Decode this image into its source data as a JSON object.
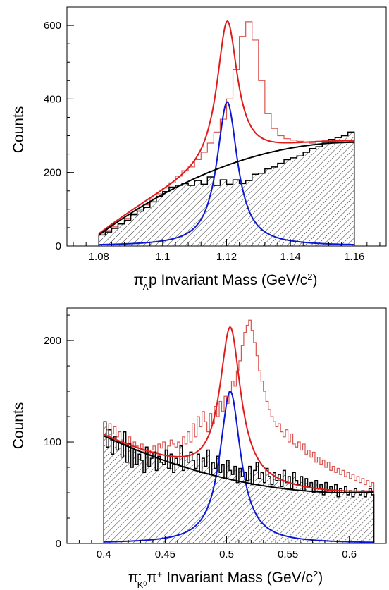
{
  "chart_data": [
    {
      "type": "histogram",
      "id": "lambda",
      "ylabel": "Counts",
      "xlabel": {
        "base": "π",
        "sup": "-",
        "sub": "Λ",
        "rest": "p Invariant Mass (GeV/c",
        "unit_sup": "2",
        "close": ")"
      },
      "xlim": [
        1.07,
        1.17
      ],
      "ylim": [
        0,
        650
      ],
      "xticks": [
        {
          "v": 1.08,
          "label": "1.08"
        },
        {
          "v": 1.1,
          "label": "1.1"
        },
        {
          "v": 1.12,
          "label": "1.12"
        },
        {
          "v": 1.14,
          "label": "1.14"
        },
        {
          "v": 1.16,
          "label": "1.16"
        }
      ],
      "yticks": [
        {
          "v": 0,
          "label": "0"
        },
        {
          "v": 200,
          "label": "200"
        },
        {
          "v": 400,
          "label": "400"
        },
        {
          "v": 600,
          "label": "600"
        }
      ],
      "bin_start": 1.08,
      "bin_width": 0.002,
      "series": [
        {
          "kind": "hist",
          "color": "#d9534f",
          "values": [
            35,
            42,
            52,
            62,
            75,
            88,
            100,
            112,
            128,
            142,
            158,
            172,
            190,
            205,
            215,
            235,
            255,
            280,
            310,
            345,
            400,
            480,
            570,
            610,
            560,
            450,
            360,
            320,
            300,
            292,
            288,
            285,
            282,
            280,
            285,
            288,
            290,
            295,
            300,
            310
          ]
        },
        {
          "kind": "hist-hatched",
          "color": "#000000",
          "values": [
            30,
            38,
            48,
            60,
            70,
            85,
            95,
            105,
            120,
            135,
            148,
            160,
            165,
            170,
            165,
            178,
            168,
            188,
            165,
            180,
            168,
            180,
            170,
            178,
            195,
            198,
            210,
            215,
            225,
            235,
            240,
            245,
            255,
            265,
            270,
            280,
            290,
            295,
            300,
            310
          ]
        },
        {
          "kind": "fit",
          "color": "#e01b1b",
          "model": "total",
          "peak": 1.1202,
          "gamma": 0.0078,
          "amp": 392
        },
        {
          "kind": "fit",
          "color": "#0b18d6",
          "model": "signal",
          "peak": 1.1202,
          "gamma": 0.0078,
          "amp": 392
        },
        {
          "kind": "fit",
          "color": "#000000",
          "model": "background",
          "poly": [
            30,
            282,
            1.08,
            1.16
          ]
        }
      ]
    },
    {
      "type": "histogram",
      "id": "kaon",
      "ylabel": "Counts",
      "xlabel": {
        "base": "π",
        "sup": "-",
        "sub": "K",
        "subsup": "0",
        "mid": "π",
        "midsup": "+",
        "rest": " Invariant Mass (GeV/c",
        "unit_sup": "2",
        "close": ")"
      },
      "xlim": [
        0.37,
        0.63
      ],
      "ylim": [
        0,
        232
      ],
      "xticks": [
        {
          "v": 0.4,
          "label": "0.4"
        },
        {
          "v": 0.45,
          "label": "0.45"
        },
        {
          "v": 0.5,
          "label": "0.5"
        },
        {
          "v": 0.55,
          "label": "0.55"
        },
        {
          "v": 0.6,
          "label": "0.6"
        }
      ],
      "yticks": [
        {
          "v": 0,
          "label": "0"
        },
        {
          "v": 100,
          "label": "100"
        },
        {
          "v": 200,
          "label": "200"
        }
      ],
      "bin_start": 0.4,
      "bin_width": 0.002,
      "series": [
        {
          "kind": "hist",
          "color": "#d9534f",
          "values": [
            120,
            112,
            118,
            108,
            115,
            105,
            110,
            102,
            108,
            98,
            105,
            95,
            100,
            96,
            92,
            98,
            90,
            95,
            88,
            92,
            96,
            90,
            98,
            94,
            100,
            92,
            96,
            102,
            98,
            95,
            100,
            94,
            105,
            98,
            110,
            100,
            118,
            105,
            125,
            115,
            130,
            120,
            110,
            128,
            118,
            135,
            125,
            140,
            130,
            145,
            138,
            150,
            160,
            155,
            170,
            180,
            195,
            208,
            215,
            220,
            210,
            198,
            185,
            170,
            160,
            150,
            140,
            132,
            125,
            120,
            115,
            118,
            110,
            105,
            112,
            100,
            108,
            98,
            95,
            100,
            92,
            98,
            88,
            92,
            85,
            90,
            80,
            85,
            78,
            82,
            75,
            80,
            72,
            76,
            70,
            74,
            68,
            72,
            66,
            70,
            64,
            68,
            62,
            66,
            60,
            64,
            58,
            62,
            56,
            60
          ]
        },
        {
          "kind": "hist-hatched",
          "color": "#000000",
          "values": [
            120,
            95,
            112,
            88,
            105,
            92,
            100,
            85,
            110,
            80,
            98,
            75,
            92,
            78,
            88,
            82,
            70,
            95,
            76,
            84,
            90,
            72,
            86,
            80,
            78,
            92,
            74,
            88,
            70,
            84,
            78,
            96,
            72,
            86,
            80,
            90,
            82,
            74,
            88,
            70,
            84,
            76,
            92,
            68,
            80,
            74,
            86,
            70,
            78,
            64,
            82,
            72,
            68,
            76,
            60,
            74,
            66,
            70,
            62,
            76,
            58,
            72,
            80,
            64,
            70,
            60,
            74,
            66,
            58,
            70,
            62,
            68,
            56,
            72,
            60,
            66,
            54,
            70,
            62,
            58,
            66,
            52,
            64,
            56,
            60,
            50,
            62,
            54,
            58,
            48,
            60,
            52,
            56,
            50,
            58,
            46,
            54,
            50,
            56,
            48,
            52,
            46,
            54,
            50,
            48,
            52,
            46,
            50,
            54,
            48
          ]
        },
        {
          "kind": "fit",
          "color": "#e01b1b",
          "model": "total",
          "peak": 0.503,
          "gamma": 0.0205,
          "amp": 150
        },
        {
          "kind": "fit",
          "color": "#0b18d6",
          "model": "signal",
          "peak": 0.503,
          "gamma": 0.0205,
          "amp": 150
        },
        {
          "kind": "fit",
          "color": "#000000",
          "model": "background",
          "quad": [
            106,
            50,
            0.4,
            0.6
          ]
        }
      ]
    }
  ]
}
